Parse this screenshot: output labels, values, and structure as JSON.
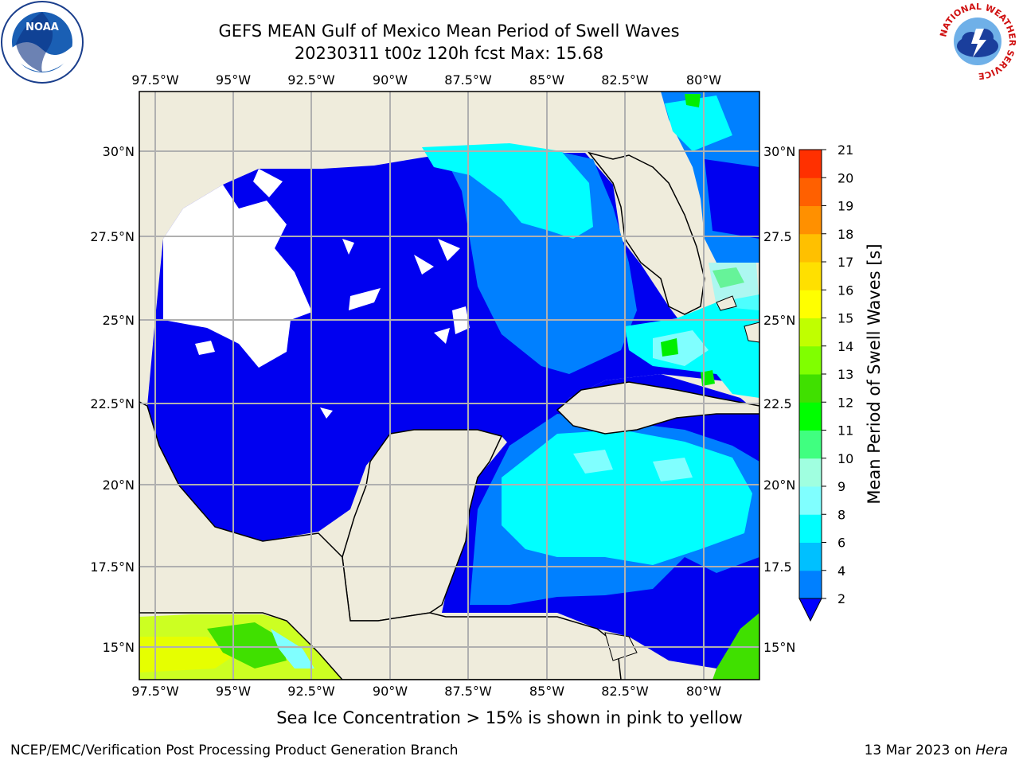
{
  "header": {
    "title_line1": "GEFS MEAN Gulf of Mexico Mean Period of Swell Waves",
    "title_line2": "20230311 t00z 120h fcst   Max: 15.68"
  },
  "logos": {
    "left": "noaa-logo",
    "right": "nws-logo",
    "left_text": "NOAA",
    "right_ring_text": "NATIONAL WEATHER SERVICE"
  },
  "map": {
    "lon_labels": [
      "97.5°W",
      "95°W",
      "92.5°W",
      "90°W",
      "87.5°W",
      "85°W",
      "82.5°W",
      "80°W"
    ],
    "lat_labels_left": [
      "30°N",
      "27.5°N",
      "25°N",
      "22.5°N",
      "20°N",
      "17.5°N",
      "15°N"
    ],
    "lat_labels_right": [
      "30°N",
      "27.5",
      "25°N",
      "22.5",
      "20°N",
      "17.5",
      "15°N"
    ],
    "colors": {
      "land": "#efecdc",
      "ocean_low": "#0000f0",
      "grid": "#b0b0b0"
    }
  },
  "colorbar": {
    "label": "Mean Period of Swell Waves [s]",
    "ticks": [
      "2",
      "4",
      "6",
      "8",
      "9",
      "10",
      "11",
      "12",
      "13",
      "14",
      "15",
      "16",
      "17",
      "18",
      "19",
      "20",
      "21"
    ],
    "colors": [
      "#0000ff",
      "#0080ff",
      "#00c0ff",
      "#00ffff",
      "#80ffff",
      "#a0ffe0",
      "#40ff80",
      "#00ff00",
      "#40e000",
      "#80ff00",
      "#c0ff00",
      "#ffff00",
      "#ffe000",
      "#ffc000",
      "#ff9000",
      "#ff6000",
      "#ff3000",
      "#ff0000"
    ]
  },
  "note": "Sea Ice Concentration > 15% is shown in pink to yellow",
  "footer": {
    "left": "NCEP/EMC/Verification Post Processing Product Generation Branch",
    "right_prefix": "13 Mar 2023 on ",
    "right_host": "Hera"
  }
}
